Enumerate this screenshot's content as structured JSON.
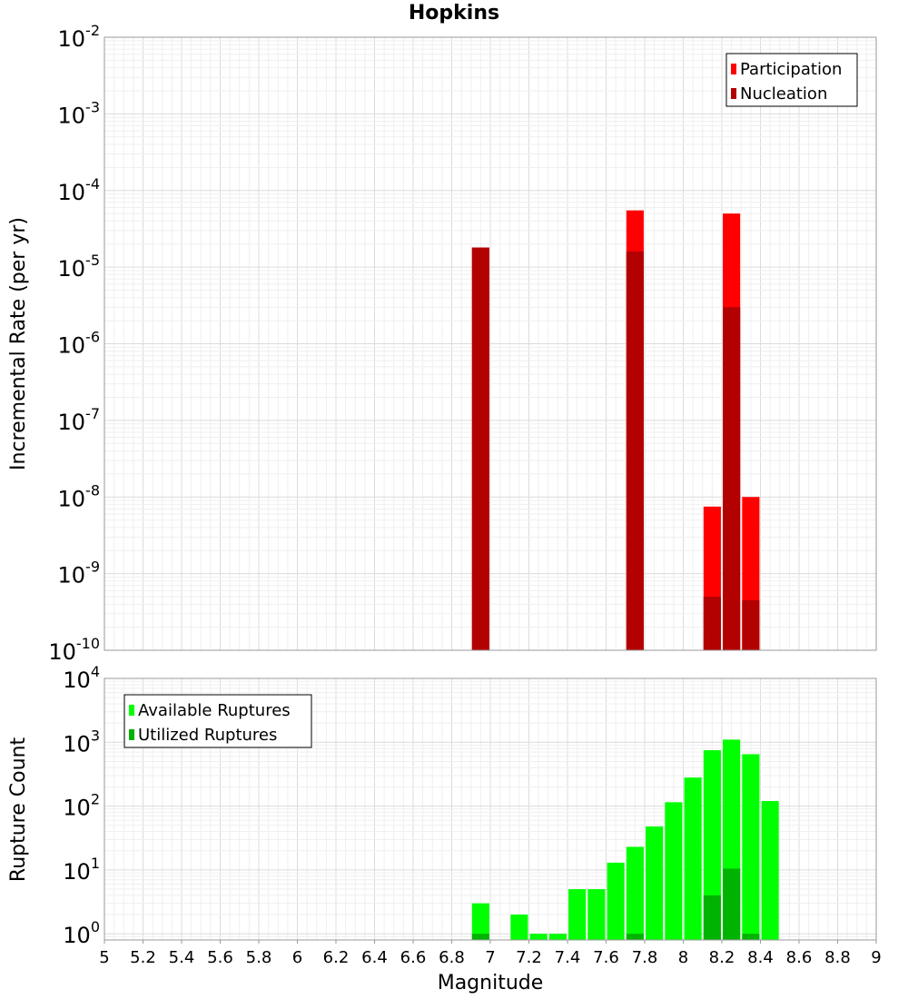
{
  "chart_data": [
    {
      "type": "bar",
      "title": "Hopkins",
      "ylabel": "Incremental Rate (per yr)",
      "xlabel": "",
      "y_scale": "log",
      "ylim": [
        1e-10,
        0.01
      ],
      "xlim": [
        5,
        9
      ],
      "y_ticks": [
        {
          "base": "10",
          "exp": "-10"
        },
        {
          "base": "10",
          "exp": "-9"
        },
        {
          "base": "10",
          "exp": "-8"
        },
        {
          "base": "10",
          "exp": "-7"
        },
        {
          "base": "10",
          "exp": "-6"
        },
        {
          "base": "10",
          "exp": "-5"
        },
        {
          "base": "10",
          "exp": "-4"
        },
        {
          "base": "10",
          "exp": "-3"
        },
        {
          "base": "10",
          "exp": "-2"
        }
      ],
      "grid": true,
      "legend_position": "top-right",
      "bar_width": 0.09,
      "series": [
        {
          "name": "Participation",
          "color": "#ff0000",
          "x": [
            6.95,
            7.75,
            8.15,
            8.25,
            8.35
          ],
          "values": [
            1.8e-05,
            5.5e-05,
            7.5e-09,
            5e-05,
            1e-08
          ]
        },
        {
          "name": "Nucleation",
          "color": "#b30000",
          "x": [
            6.95,
            7.75,
            8.15,
            8.25,
            8.35
          ],
          "values": [
            1.8e-05,
            1.6e-05,
            5e-10,
            3e-06,
            4.5e-10
          ]
        }
      ]
    },
    {
      "type": "bar",
      "ylabel": "Rupture Count",
      "xlabel": "Magnitude",
      "y_scale": "log",
      "ylim": [
        0.8,
        10000
      ],
      "xlim": [
        5,
        9
      ],
      "y_ticks": [
        {
          "base": "10",
          "exp": "0"
        },
        {
          "base": "10",
          "exp": "1"
        },
        {
          "base": "10",
          "exp": "2"
        },
        {
          "base": "10",
          "exp": "3"
        },
        {
          "base": "10",
          "exp": "4"
        }
      ],
      "x_ticks": [
        "5",
        "5.2",
        "5.4",
        "5.6",
        "5.8",
        "6",
        "6.2",
        "6.4",
        "6.6",
        "6.8",
        "7",
        "7.2",
        "7.4",
        "7.6",
        "7.8",
        "8",
        "8.2",
        "8.4",
        "8.6",
        "8.8",
        "9"
      ],
      "grid": true,
      "legend_position": "top-left",
      "bar_width": 0.09,
      "series": [
        {
          "name": "Available Ruptures",
          "color": "#00ff00",
          "x": [
            6.95,
            7.15,
            7.25,
            7.35,
            7.45,
            7.55,
            7.65,
            7.75,
            7.85,
            7.95,
            8.05,
            8.15,
            8.25,
            8.35,
            8.45
          ],
          "values": [
            3,
            2,
            1,
            1,
            5,
            5,
            13,
            23,
            48,
            115,
            280,
            750,
            1100,
            650,
            120
          ]
        },
        {
          "name": "Utilized Ruptures",
          "color": "#00b300",
          "x": [
            6.95,
            7.75,
            8.15,
            8.25,
            8.35
          ],
          "values": [
            1,
            1,
            4,
            10.5,
            1
          ]
        }
      ]
    }
  ]
}
